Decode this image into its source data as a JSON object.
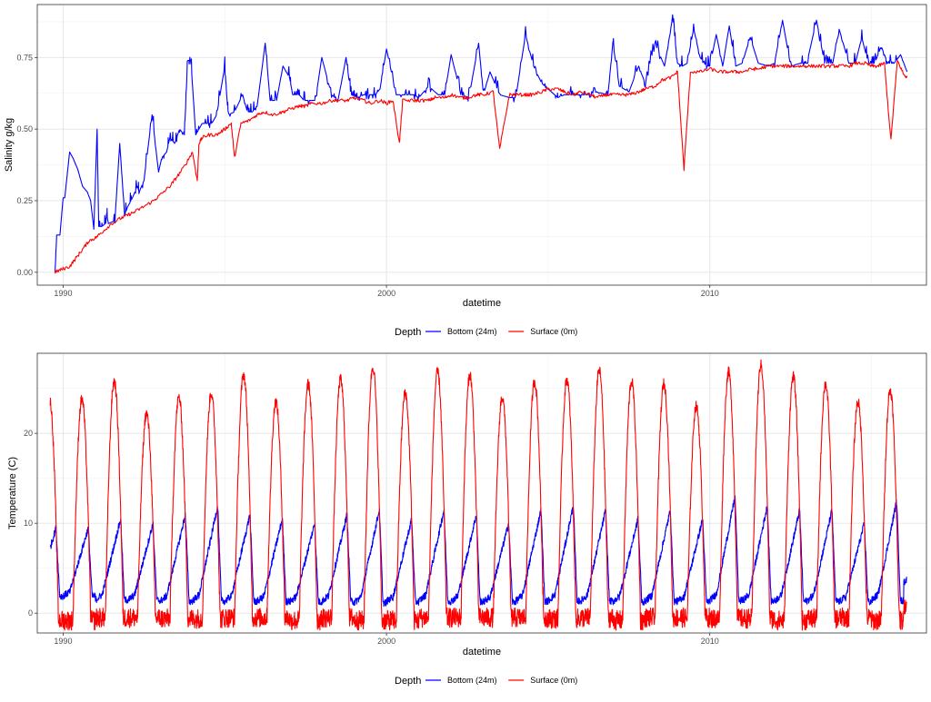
{
  "chart_data": [
    {
      "type": "line",
      "title": "",
      "xlabel": "datetime",
      "ylabel": "Salinity g/kg",
      "xlim": [
        1989.2,
        2016.7
      ],
      "ylim": [
        -0.045,
        0.935
      ],
      "xticks": [
        {
          "value": 1990,
          "label": "1990"
        },
        {
          "value": 2000,
          "label": "2000"
        },
        {
          "value": 2010,
          "label": "2010"
        }
      ],
      "yticks": [
        {
          "value": 0,
          "label": "0.00"
        },
        {
          "value": 0.25,
          "label": "0.25"
        },
        {
          "value": 0.5,
          "label": "0.50"
        },
        {
          "value": 0.75,
          "label": "0.75"
        }
      ],
      "grid": true,
      "legend": {
        "title": "Depth",
        "position": "bottom"
      },
      "series": [
        {
          "name": "Bottom (24m)",
          "color": "#0000ff",
          "x": [
            1989.75,
            1989.8,
            1989.9,
            1990.0,
            1990.05,
            1990.2,
            1990.3,
            1990.45,
            1990.6,
            1990.75,
            1990.85,
            1990.95,
            1991.05,
            1991.1,
            1991.2,
            1991.3,
            1991.35,
            1991.4,
            1991.6,
            1991.75,
            1991.9,
            1992.0,
            1992.1,
            1992.3,
            1992.35,
            1992.5,
            1992.75,
            1992.95,
            1993.05,
            1993.2,
            1993.3,
            1993.45,
            1993.6,
            1993.75,
            1993.85,
            1993.95,
            1994.1,
            1994.2,
            1994.3,
            1994.5,
            1994.6,
            1994.75,
            1995.0,
            1995.1,
            1995.3,
            1995.55,
            1995.7,
            1995.85,
            1996.0,
            1996.25,
            1996.4,
            1996.6,
            1996.8,
            1997.0,
            1997.1,
            1997.3,
            1997.45,
            1997.6,
            1997.8,
            1998.0,
            1998.3,
            1998.5,
            1998.75,
            1998.9,
            1999.1,
            1999.3,
            1999.5,
            1999.65,
            1999.8,
            2000.0,
            2000.3,
            2000.6,
            2000.85,
            2001.0,
            2001.3,
            2001.6,
            2001.8,
            2002.0,
            2002.3,
            2002.55,
            2002.85,
            2003.0,
            2003.2,
            2003.5,
            2003.8,
            2004.0,
            2004.3,
            2004.55,
            2004.8,
            2005.0,
            2005.2,
            2005.3,
            2005.5,
            2005.75,
            2006.0,
            2006.2,
            2006.5,
            2006.85,
            2007.0,
            2007.2,
            2007.5,
            2007.8,
            2008.0,
            2008.3,
            2008.6,
            2008.85,
            2009.0,
            2009.15,
            2009.3,
            2009.5,
            2009.7,
            2009.9,
            2010.0,
            2010.2,
            2010.4,
            2010.6,
            2010.8,
            2011.0,
            2011.25,
            2011.5,
            2011.8,
            2012.0,
            2012.25,
            2012.5,
            2012.8,
            2013.0,
            2013.3,
            2013.55,
            2013.8,
            2014.0,
            2014.3,
            2014.5,
            2014.7,
            2014.9,
            2015.1,
            2015.3,
            2015.5,
            2015.7,
            2015.9,
            2016.1
          ],
          "values": [
            0.0,
            0.13,
            0.13,
            0.26,
            0.26,
            0.42,
            0.4,
            0.36,
            0.3,
            0.28,
            0.25,
            0.15,
            0.5,
            0.16,
            0.16,
            0.17,
            0.2,
            0.17,
            0.18,
            0.45,
            0.2,
            0.23,
            0.25,
            0.3,
            0.28,
            0.32,
            0.55,
            0.35,
            0.4,
            0.42,
            0.47,
            0.45,
            0.5,
            0.48,
            0.74,
            0.74,
            0.48,
            0.5,
            0.52,
            0.52,
            0.52,
            0.55,
            0.72,
            0.55,
            0.56,
            0.62,
            0.56,
            0.56,
            0.58,
            0.8,
            0.6,
            0.6,
            0.72,
            0.68,
            0.62,
            0.62,
            0.6,
            0.6,
            0.6,
            0.75,
            0.62,
            0.6,
            0.75,
            0.62,
            0.61,
            0.62,
            0.62,
            0.62,
            0.64,
            0.78,
            0.62,
            0.62,
            0.62,
            0.61,
            0.65,
            0.62,
            0.62,
            0.76,
            0.62,
            0.61,
            0.8,
            0.62,
            0.7,
            0.62,
            0.61,
            0.61,
            0.83,
            0.72,
            0.66,
            0.64,
            0.62,
            0.61,
            0.62,
            0.62,
            0.62,
            0.62,
            0.63,
            0.62,
            0.8,
            0.65,
            0.63,
            0.72,
            0.66,
            0.8,
            0.72,
            0.89,
            0.73,
            0.72,
            0.73,
            0.85,
            0.75,
            0.72,
            0.72,
            0.83,
            0.72,
            0.86,
            0.72,
            0.73,
            0.82,
            0.73,
            0.72,
            0.73,
            0.88,
            0.72,
            0.73,
            0.73,
            0.88,
            0.73,
            0.73,
            0.85,
            0.73,
            0.73,
            0.82,
            0.73,
            0.73,
            0.79,
            0.73,
            0.73,
            0.76,
            0.7
          ],
          "shown_in": "chart"
        },
        {
          "name": "Surface (0m)",
          "color": "#ff0000",
          "x": [
            1989.75,
            1989.95,
            1990.2,
            1990.4,
            1990.6,
            1990.8,
            1991.0,
            1991.2,
            1991.5,
            1991.8,
            1992.0,
            1992.2,
            1992.5,
            1992.8,
            1993.0,
            1993.3,
            1993.5,
            1993.75,
            1994.0,
            1994.15,
            1994.2,
            1994.3,
            1994.5,
            1994.75,
            1995.0,
            1995.2,
            1995.3,
            1995.5,
            1995.75,
            1996.0,
            1996.2,
            1996.5,
            1996.8,
            1997.0,
            1997.3,
            1997.5,
            1997.7,
            1998.0,
            1998.3,
            1998.5,
            1998.8,
            1999.0,
            1999.3,
            1999.5,
            1999.8,
            2000.0,
            2000.2,
            2000.4,
            2000.5,
            2000.8,
            2001.0,
            2001.3,
            2001.5,
            2001.8,
            2002.0,
            2002.3,
            2002.5,
            2002.8,
            2003.0,
            2003.3,
            2003.5,
            2003.8,
            2004.0,
            2004.3,
            2004.5,
            2004.8,
            2005.0,
            2005.3,
            2005.5,
            2005.8,
            2006.0,
            2006.3,
            2006.5,
            2006.8,
            2007.0,
            2007.3,
            2007.5,
            2007.8,
            2008.0,
            2008.3,
            2008.5,
            2008.8,
            2009.0,
            2009.2,
            2009.4,
            2009.7,
            2010.0,
            2010.3,
            2010.5,
            2010.8,
            2011.0,
            2011.3,
            2011.5,
            2011.8,
            2012.0,
            2012.3,
            2012.5,
            2012.8,
            2013.0,
            2013.3,
            2013.5,
            2013.8,
            2014.0,
            2014.3,
            2014.5,
            2014.8,
            2015.0,
            2015.2,
            2015.4,
            2015.6,
            2015.8,
            2016.0,
            2016.1
          ],
          "values": [
            0.0,
            0.01,
            0.02,
            0.05,
            0.08,
            0.11,
            0.12,
            0.14,
            0.17,
            0.19,
            0.2,
            0.21,
            0.23,
            0.25,
            0.27,
            0.3,
            0.33,
            0.37,
            0.42,
            0.32,
            0.45,
            0.47,
            0.48,
            0.48,
            0.5,
            0.52,
            0.4,
            0.52,
            0.53,
            0.55,
            0.56,
            0.55,
            0.56,
            0.57,
            0.58,
            0.58,
            0.59,
            0.59,
            0.6,
            0.6,
            0.6,
            0.61,
            0.6,
            0.59,
            0.6,
            0.59,
            0.6,
            0.45,
            0.6,
            0.6,
            0.6,
            0.6,
            0.61,
            0.61,
            0.62,
            0.61,
            0.61,
            0.62,
            0.62,
            0.63,
            0.43,
            0.62,
            0.62,
            0.62,
            0.62,
            0.63,
            0.64,
            0.64,
            0.63,
            0.62,
            0.63,
            0.62,
            0.61,
            0.62,
            0.62,
            0.62,
            0.62,
            0.63,
            0.64,
            0.65,
            0.67,
            0.68,
            0.7,
            0.36,
            0.7,
            0.7,
            0.71,
            0.7,
            0.7,
            0.7,
            0.7,
            0.71,
            0.71,
            0.72,
            0.72,
            0.72,
            0.72,
            0.72,
            0.72,
            0.72,
            0.72,
            0.72,
            0.72,
            0.72,
            0.73,
            0.73,
            0.72,
            0.72,
            0.73,
            0.46,
            0.74,
            0.69,
            0.68
          ]
        }
      ]
    },
    {
      "type": "line",
      "title": "",
      "xlabel": "datetime",
      "ylabel": "Temperature (C)",
      "xlim": [
        1989.2,
        2016.7
      ],
      "ylim": [
        -2.2,
        28.9
      ],
      "xticks": [
        {
          "value": 1990,
          "label": "1990"
        },
        {
          "value": 2000,
          "label": "2000"
        },
        {
          "value": 2010,
          "label": "2010"
        }
      ],
      "yticks": [
        {
          "value": 0,
          "label": "0"
        },
        {
          "value": 10,
          "label": "10"
        },
        {
          "value": 20,
          "label": "20"
        }
      ],
      "grid": true,
      "legend": {
        "title": "Depth",
        "position": "bottom"
      },
      "series": [
        {
          "name": "Bottom (24m)",
          "color": "#0000ff",
          "seasonal_cycle": {
            "years": [
              1990,
              1991,
              1992,
              1993,
              1994,
              1995,
              1996,
              1997,
              1998,
              1999,
              2000,
              2001,
              2002,
              2003,
              2004,
              2005,
              2006,
              2007,
              2008,
              2009,
              2010,
              2011,
              2012,
              2013,
              2014,
              2015,
              2016
            ],
            "winter_min": [
              1.5,
              1.0,
              1.0,
              0.8,
              0.8,
              0.8,
              0.8,
              0.8,
              0.8,
              0.6,
              0.8,
              0.8,
              0.8,
              0.8,
              0.8,
              0.8,
              0.8,
              0.8,
              0.8,
              0.8,
              0.8,
              0.8,
              0.8,
              0.8,
              0.8,
              0.8,
              3.0
            ],
            "summer_max": [
              9.5,
              10.5,
              10.0,
              11.0,
              12.0,
              11.0,
              10.5,
              10.0,
              11.0,
              11.5,
              10.5,
              11.5,
              11.0,
              10.0,
              11.5,
              12.0,
              11.5,
              10.5,
              11.5,
              10.5,
              13.0,
              12.0,
              11.5,
              11.5,
              10.0,
              12.5,
              12.5
            ]
          }
        },
        {
          "name": "Surface (0m)",
          "color": "#ff0000",
          "seasonal_cycle": {
            "years": [
              1990,
              1991,
              1992,
              1993,
              1994,
              1995,
              1996,
              1997,
              1998,
              1999,
              2000,
              2001,
              2002,
              2003,
              2004,
              2005,
              2006,
              2007,
              2008,
              2009,
              2010,
              2011,
              2012,
              2013,
              2014,
              2015,
              2016
            ],
            "winter_min": [
              -0.8,
              -0.5,
              -0.5,
              -0.6,
              -0.6,
              -0.5,
              -0.5,
              -0.8,
              -0.5,
              -0.8,
              -0.8,
              -0.5,
              -0.5,
              -0.5,
              -0.5,
              -0.6,
              -0.5,
              -0.8,
              -0.5,
              -0.5,
              -0.6,
              -0.6,
              -0.8,
              -0.6,
              -0.5,
              -0.8,
              1.0
            ],
            "summer_max": [
              23.8,
              25.8,
              22.2,
              24.0,
              24.5,
              26.5,
              23.5,
              25.5,
              26.0,
              27.4,
              24.5,
              26.8,
              26.5,
              24.0,
              25.8,
              26.0,
              27.0,
              25.8,
              25.5,
              23.0,
              26.8,
              27.6,
              26.3,
              25.5,
              23.5,
              24.8,
              0.8
            ]
          }
        }
      ]
    }
  ]
}
